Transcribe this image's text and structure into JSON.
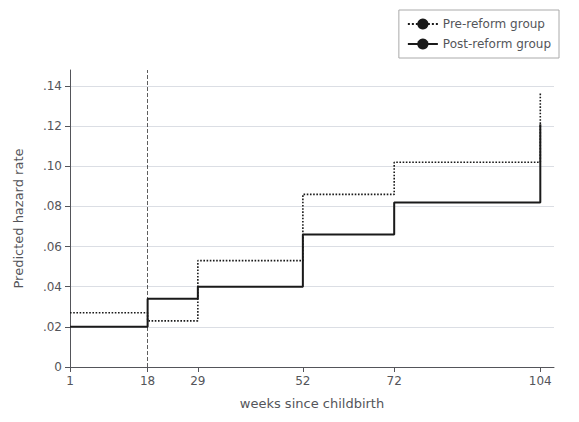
{
  "chart_data": {
    "type": "line",
    "x": [
      1,
      18,
      18,
      29,
      29,
      52,
      52,
      72,
      72,
      104,
      104
    ],
    "series": [
      {
        "name": "Pre-reform group",
        "color": "#1a1a1a",
        "line_style": "dotted",
        "values": [
          0.027,
          0.027,
          0.023,
          0.023,
          0.053,
          0.053,
          0.086,
          0.086,
          0.102,
          0.102,
          0.137
        ]
      },
      {
        "name": "Post-reform group",
        "color": "#1a1a1a",
        "line_style": "solid",
        "values": [
          0.02,
          0.02,
          0.034,
          0.034,
          0.04,
          0.04,
          0.066,
          0.066,
          0.082,
          0.082,
          0.121
        ]
      }
    ],
    "xlabel": "weeks since childbirth",
    "ylabel": "Predicted hazard rate",
    "xlim": [
      1,
      107
    ],
    "ylim": [
      0,
      0.148
    ],
    "xticks": [
      1,
      18,
      29,
      52,
      72,
      104
    ],
    "yticks": [
      0,
      {
        "value": 0.02,
        "label": ".02"
      },
      {
        "value": 0.04,
        "label": ".04"
      },
      {
        "value": 0.06,
        "label": ".06"
      },
      {
        "value": 0.08,
        "label": ".08"
      },
      {
        "value": 0.1,
        "label": ".10"
      },
      {
        "value": 0.12,
        "label": ".12"
      },
      {
        "value": 0.14,
        "label": ".14"
      }
    ],
    "vline_x": 18,
    "grid": true,
    "legend": "upper right"
  }
}
